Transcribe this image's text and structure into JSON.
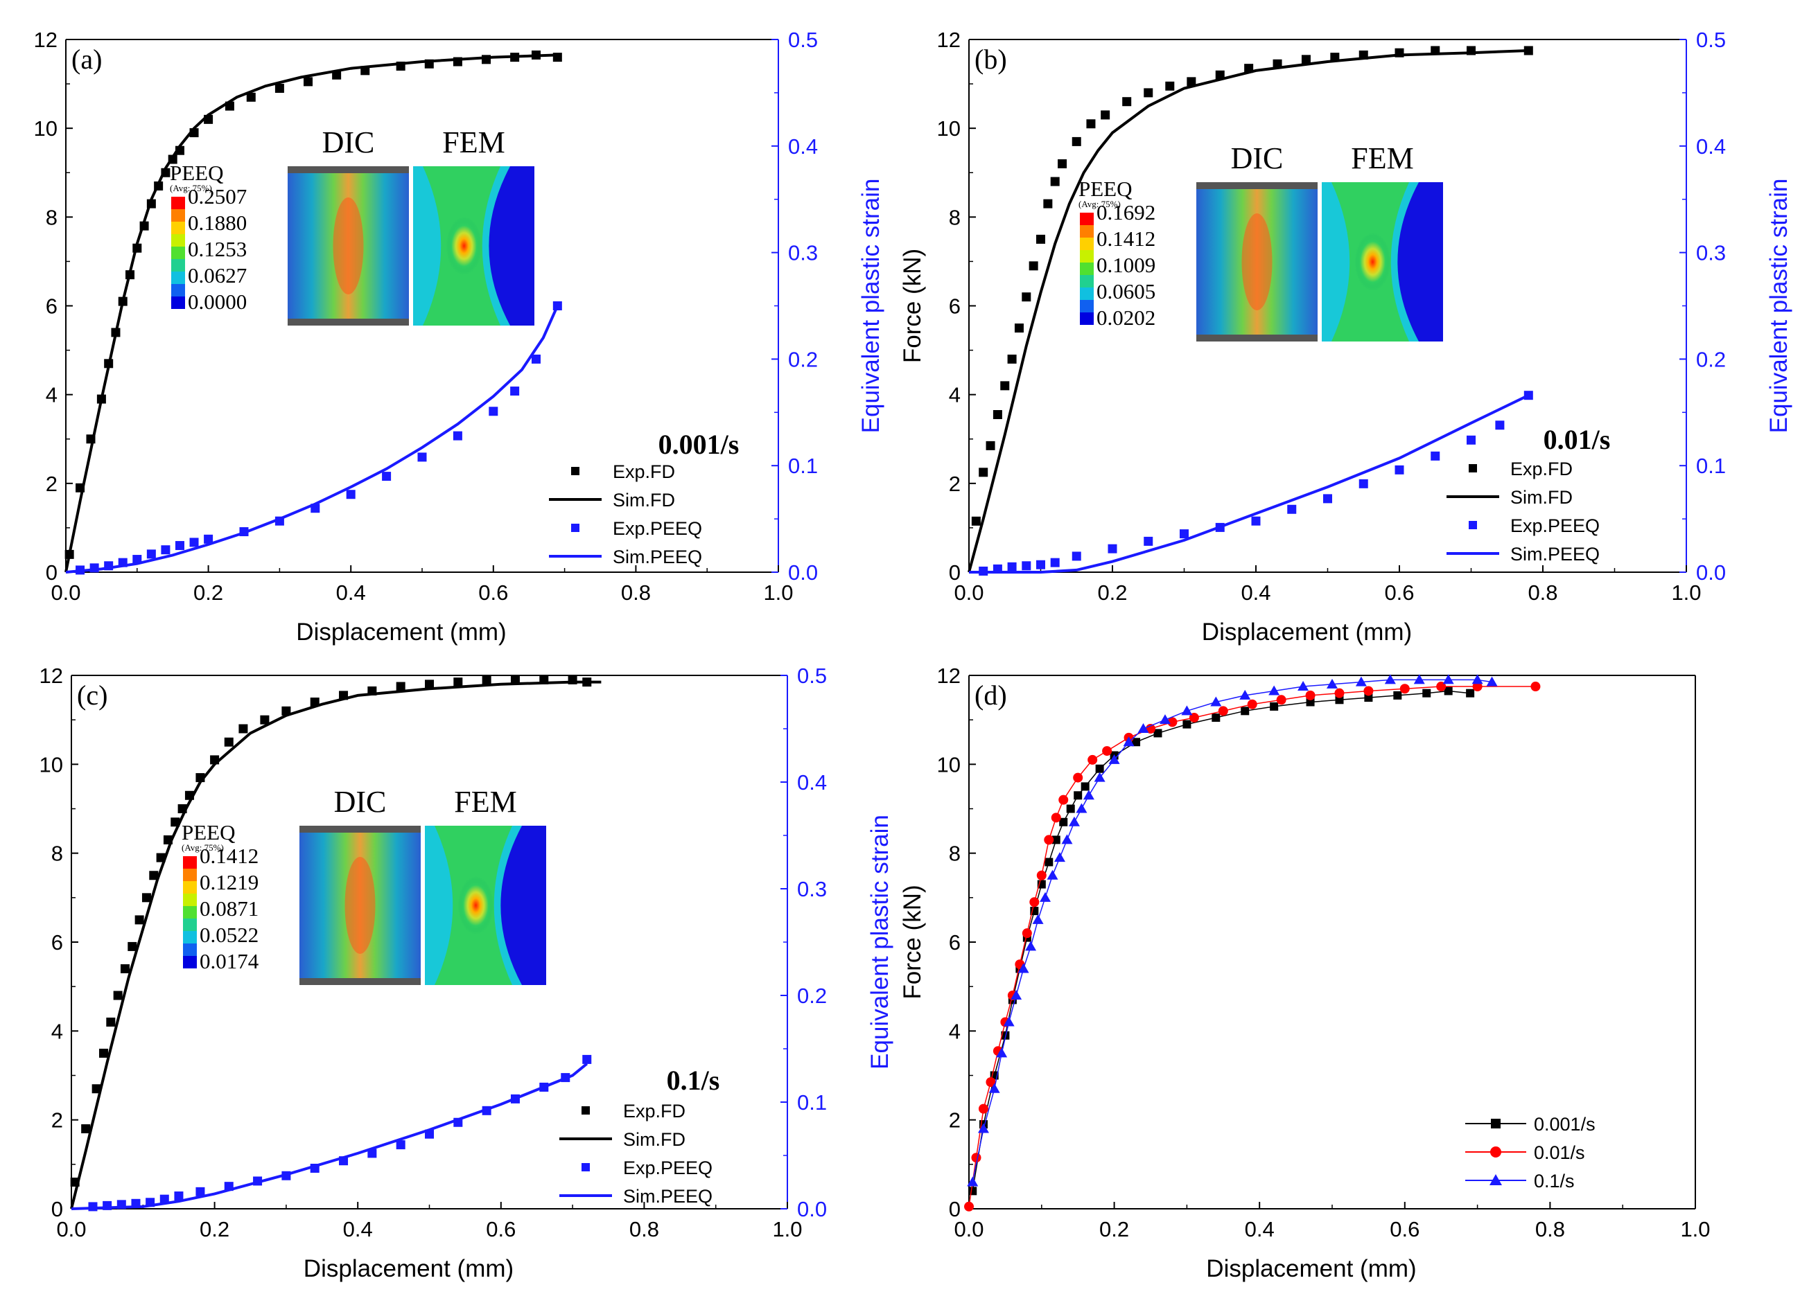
{
  "colors": {
    "exp_fd": "#000000",
    "sim_fd": "#000000",
    "exp_peeq": "#1a1aff",
    "sim_peeq": "#1a1aff",
    "rate_0001": "#000000",
    "rate_001": "#ff0000",
    "rate_01": "#1a1aff"
  },
  "chart_data": [
    {
      "panel": "(a)",
      "type": "scatter",
      "rate_label": "0.001/s",
      "xlabel": "Displacement (mm)",
      "ylabel": "",
      "y2label": "Equivalent plastic strain",
      "xlim": [
        0.0,
        1.0
      ],
      "ylim": [
        0,
        12
      ],
      "y2lim": [
        0.0,
        0.5
      ],
      "xticks": [
        "0.0",
        "0.2",
        "0.4",
        "0.6",
        "0.8",
        "1.0"
      ],
      "yticks": [
        "0",
        "2",
        "4",
        "6",
        "8",
        "10",
        "12"
      ],
      "y2ticks": [
        "0.0",
        "0.1",
        "0.2",
        "0.3",
        "0.4",
        "0.5"
      ],
      "legend": [
        "Exp.FD",
        "Sim.FD",
        "Exp.PEEQ",
        "Sim.PEEQ"
      ],
      "series": [
        {
          "name": "Exp.FD",
          "axis": "y",
          "style": "marker",
          "marker": "square",
          "x": [
            0.005,
            0.02,
            0.035,
            0.05,
            0.06,
            0.07,
            0.08,
            0.09,
            0.1,
            0.11,
            0.12,
            0.13,
            0.14,
            0.15,
            0.16,
            0.18,
            0.2,
            0.23,
            0.26,
            0.3,
            0.34,
            0.38,
            0.42,
            0.47,
            0.51,
            0.55,
            0.59,
            0.63,
            0.66,
            0.69
          ],
          "y": [
            0.4,
            1.9,
            3.0,
            3.9,
            4.7,
            5.4,
            6.1,
            6.7,
            7.3,
            7.8,
            8.3,
            8.7,
            9.0,
            9.3,
            9.5,
            9.9,
            10.2,
            10.5,
            10.7,
            10.9,
            11.05,
            11.2,
            11.3,
            11.4,
            11.45,
            11.5,
            11.55,
            11.6,
            11.65,
            11.6
          ]
        },
        {
          "name": "Sim.FD",
          "axis": "y",
          "style": "line",
          "x": [
            0,
            0.02,
            0.05,
            0.08,
            0.1,
            0.12,
            0.14,
            0.16,
            0.18,
            0.2,
            0.24,
            0.28,
            0.33,
            0.4,
            0.5,
            0.6,
            0.69
          ],
          "y": [
            0,
            1.6,
            3.9,
            6.1,
            7.4,
            8.4,
            9.1,
            9.6,
            10.0,
            10.3,
            10.7,
            10.95,
            11.15,
            11.35,
            11.5,
            11.6,
            11.65
          ]
        },
        {
          "name": "Exp.PEEQ",
          "axis": "y2",
          "style": "marker",
          "marker": "square",
          "x": [
            0.02,
            0.04,
            0.06,
            0.08,
            0.1,
            0.12,
            0.14,
            0.16,
            0.18,
            0.2,
            0.25,
            0.3,
            0.35,
            0.4,
            0.45,
            0.5,
            0.55,
            0.6,
            0.63,
            0.66,
            0.69
          ],
          "y": [
            0.002,
            0.004,
            0.006,
            0.009,
            0.012,
            0.017,
            0.021,
            0.025,
            0.028,
            0.031,
            0.038,
            0.048,
            0.06,
            0.073,
            0.09,
            0.108,
            0.128,
            0.151,
            0.17,
            0.2,
            0.25
          ]
        },
        {
          "name": "Sim.PEEQ",
          "axis": "y2",
          "style": "line",
          "x": [
            0,
            0.05,
            0.1,
            0.15,
            0.2,
            0.25,
            0.3,
            0.35,
            0.4,
            0.45,
            0.5,
            0.55,
            0.6,
            0.64,
            0.67,
            0.69
          ],
          "y": [
            0,
            0.003,
            0.008,
            0.016,
            0.026,
            0.037,
            0.05,
            0.064,
            0.08,
            0.097,
            0.117,
            0.139,
            0.165,
            0.19,
            0.22,
            0.25
          ]
        }
      ],
      "inset": {
        "left_title": "DIC",
        "right_title": "FEM",
        "scale_title": "PEEQ",
        "scale_sub": "(Avg: 75%)",
        "scale_values": [
          "0.2507",
          "0.1880",
          "0.1253",
          "0.0627",
          "0.0000"
        ]
      }
    },
    {
      "panel": "(b)",
      "type": "scatter",
      "rate_label": "0.01/s",
      "xlabel": "Displacement (mm)",
      "ylabel": "Force (kN)",
      "y2label": "Equivalent plastic strain",
      "xlim": [
        0.0,
        1.0
      ],
      "ylim": [
        0,
        12
      ],
      "y2lim": [
        0.0,
        0.5
      ],
      "xticks": [
        "0.0",
        "0.2",
        "0.4",
        "0.6",
        "0.8",
        "1.0"
      ],
      "yticks": [
        "0",
        "2",
        "4",
        "6",
        "8",
        "10",
        "12"
      ],
      "y2ticks": [
        "0.0",
        "0.1",
        "0.2",
        "0.3",
        "0.4",
        "0.5"
      ],
      "legend": [
        "Exp.FD",
        "Sim.FD",
        "Exp.PEEQ",
        "Sim.PEEQ"
      ],
      "series": [
        {
          "name": "Exp.FD",
          "axis": "y",
          "style": "marker",
          "marker": "square",
          "x": [
            0.01,
            0.02,
            0.03,
            0.04,
            0.05,
            0.06,
            0.07,
            0.08,
            0.09,
            0.1,
            0.11,
            0.12,
            0.13,
            0.15,
            0.17,
            0.19,
            0.22,
            0.25,
            0.28,
            0.31,
            0.35,
            0.39,
            0.43,
            0.47,
            0.51,
            0.55,
            0.6,
            0.65,
            0.7,
            0.78
          ],
          "y": [
            1.15,
            2.25,
            2.85,
            3.55,
            4.2,
            4.8,
            5.5,
            6.2,
            6.9,
            7.5,
            8.3,
            8.8,
            9.2,
            9.7,
            10.1,
            10.3,
            10.6,
            10.8,
            10.95,
            11.05,
            11.2,
            11.35,
            11.45,
            11.55,
            11.6,
            11.65,
            11.7,
            11.75,
            11.75,
            11.75
          ]
        },
        {
          "name": "Sim.FD",
          "axis": "y",
          "style": "line",
          "x": [
            0,
            0.02,
            0.05,
            0.08,
            0.1,
            0.12,
            0.14,
            0.16,
            0.18,
            0.2,
            0.25,
            0.3,
            0.35,
            0.4,
            0.5,
            0.6,
            0.7,
            0.78
          ],
          "y": [
            0,
            1.2,
            3.1,
            5.1,
            6.3,
            7.4,
            8.3,
            9.0,
            9.5,
            9.9,
            10.5,
            10.9,
            11.1,
            11.3,
            11.5,
            11.65,
            11.7,
            11.75
          ]
        },
        {
          "name": "Exp.PEEQ",
          "axis": "y2",
          "style": "marker",
          "marker": "square",
          "x": [
            0.02,
            0.04,
            0.06,
            0.08,
            0.1,
            0.12,
            0.15,
            0.2,
            0.25,
            0.3,
            0.35,
            0.4,
            0.45,
            0.5,
            0.55,
            0.6,
            0.65,
            0.7,
            0.74,
            0.78
          ],
          "y": [
            0.001,
            0.003,
            0.005,
            0.006,
            0.007,
            0.009,
            0.015,
            0.022,
            0.029,
            0.036,
            0.042,
            0.048,
            0.059,
            0.069,
            0.083,
            0.096,
            0.109,
            0.124,
            0.138,
            0.166
          ]
        },
        {
          "name": "Sim.PEEQ",
          "axis": "y2",
          "style": "line",
          "x": [
            0,
            0.1,
            0.15,
            0.2,
            0.3,
            0.4,
            0.5,
            0.6,
            0.7,
            0.78
          ],
          "y": [
            0,
            0.0,
            0.002,
            0.01,
            0.03,
            0.055,
            0.08,
            0.107,
            0.14,
            0.166
          ]
        }
      ],
      "inset": {
        "left_title": "DIC",
        "right_title": "FEM",
        "scale_title": "PEEQ",
        "scale_sub": "(Avg: 75%)",
        "scale_values": [
          "0.1692",
          "0.1412",
          "0.1009",
          "0.0605",
          "0.0202"
        ]
      }
    },
    {
      "panel": "(c)",
      "type": "scatter",
      "rate_label": "0.1/s",
      "xlabel": "Displacement (mm)",
      "ylabel": "",
      "y2label": "Equivalent plastic strain",
      "xlim": [
        0.0,
        1.0
      ],
      "ylim": [
        0,
        12
      ],
      "y2lim": [
        0.0,
        0.5
      ],
      "xticks": [
        "0.0",
        "0.2",
        "0.4",
        "0.6",
        "0.8",
        "1.0"
      ],
      "yticks": [
        "0",
        "2",
        "4",
        "6",
        "8",
        "10",
        "12"
      ],
      "y2ticks": [
        "0.0",
        "0.1",
        "0.2",
        "0.3",
        "0.4",
        "0.5"
      ],
      "legend": [
        "Exp.FD",
        "Sim.FD",
        "Exp.PEEQ",
        "Sim.PEEQ"
      ],
      "series": [
        {
          "name": "Exp.FD",
          "axis": "y",
          "style": "marker",
          "marker": "square",
          "x": [
            0.005,
            0.02,
            0.035,
            0.045,
            0.055,
            0.065,
            0.075,
            0.085,
            0.095,
            0.105,
            0.115,
            0.125,
            0.135,
            0.145,
            0.155,
            0.165,
            0.18,
            0.2,
            0.22,
            0.24,
            0.27,
            0.3,
            0.34,
            0.38,
            0.42,
            0.46,
            0.5,
            0.54,
            0.58,
            0.62,
            0.66,
            0.7,
            0.72
          ],
          "y": [
            0.6,
            1.8,
            2.7,
            3.5,
            4.2,
            4.8,
            5.4,
            5.9,
            6.5,
            7.0,
            7.5,
            7.9,
            8.3,
            8.7,
            9.0,
            9.3,
            9.7,
            10.1,
            10.5,
            10.8,
            11.0,
            11.2,
            11.4,
            11.55,
            11.65,
            11.75,
            11.8,
            11.85,
            11.9,
            11.9,
            11.9,
            11.9,
            11.85
          ]
        },
        {
          "name": "Sim.FD",
          "axis": "y",
          "style": "line",
          "x": [
            0,
            0.02,
            0.05,
            0.08,
            0.1,
            0.12,
            0.14,
            0.16,
            0.18,
            0.2,
            0.25,
            0.3,
            0.35,
            0.4,
            0.5,
            0.6,
            0.7,
            0.74
          ],
          "y": [
            0,
            1.3,
            3.3,
            5.2,
            6.3,
            7.4,
            8.3,
            9.0,
            9.6,
            10.0,
            10.7,
            11.1,
            11.35,
            11.55,
            11.7,
            11.8,
            11.85,
            11.85
          ]
        },
        {
          "name": "Exp.PEEQ",
          "axis": "y2",
          "style": "marker",
          "marker": "square",
          "x": [
            0.03,
            0.05,
            0.07,
            0.09,
            0.11,
            0.13,
            0.15,
            0.18,
            0.22,
            0.26,
            0.3,
            0.34,
            0.38,
            0.42,
            0.46,
            0.5,
            0.54,
            0.58,
            0.62,
            0.66,
            0.69,
            0.72
          ],
          "y": [
            0.002,
            0.003,
            0.004,
            0.005,
            0.006,
            0.009,
            0.012,
            0.016,
            0.021,
            0.026,
            0.031,
            0.038,
            0.045,
            0.052,
            0.06,
            0.07,
            0.081,
            0.092,
            0.103,
            0.114,
            0.123,
            0.14
          ]
        },
        {
          "name": "Sim.PEEQ",
          "axis": "y2",
          "style": "line",
          "x": [
            0,
            0.1,
            0.15,
            0.2,
            0.3,
            0.4,
            0.5,
            0.6,
            0.7,
            0.72
          ],
          "y": [
            0,
            0.002,
            0.007,
            0.014,
            0.032,
            0.052,
            0.074,
            0.098,
            0.125,
            0.136
          ]
        }
      ],
      "inset": {
        "left_title": "DIC",
        "right_title": "FEM",
        "scale_title": "PEEQ",
        "scale_sub": "(Avg: 75%)",
        "scale_values": [
          "0.1412",
          "0.1219",
          "0.0871",
          "0.0522",
          "0.0174"
        ]
      }
    },
    {
      "panel": "(d)",
      "type": "line",
      "rate_label": "",
      "xlabel": "Displacement (mm)",
      "ylabel": "Force (kN)",
      "xlim": [
        0.0,
        1.0
      ],
      "ylim": [
        0,
        12
      ],
      "xticks": [
        "0.0",
        "0.2",
        "0.4",
        "0.6",
        "0.8",
        "1.0"
      ],
      "yticks": [
        "0",
        "2",
        "4",
        "6",
        "8",
        "10",
        "12"
      ],
      "legend": [
        "0.001/s",
        "0.01/s",
        "0.1/s"
      ],
      "series": [
        {
          "name": "0.001/s",
          "style": "linemarker",
          "marker": "square",
          "x": [
            0.005,
            0.02,
            0.035,
            0.05,
            0.06,
            0.07,
            0.08,
            0.09,
            0.1,
            0.11,
            0.12,
            0.13,
            0.14,
            0.15,
            0.16,
            0.18,
            0.2,
            0.23,
            0.26,
            0.3,
            0.34,
            0.38,
            0.42,
            0.47,
            0.51,
            0.55,
            0.59,
            0.63,
            0.66,
            0.69
          ],
          "y": [
            0.4,
            1.9,
            3.0,
            3.9,
            4.7,
            5.4,
            6.1,
            6.7,
            7.3,
            7.8,
            8.3,
            8.7,
            9.0,
            9.3,
            9.5,
            9.9,
            10.2,
            10.5,
            10.7,
            10.9,
            11.05,
            11.2,
            11.3,
            11.4,
            11.45,
            11.5,
            11.55,
            11.6,
            11.65,
            11.6
          ]
        },
        {
          "name": "0.01/s",
          "style": "linemarker",
          "marker": "circle",
          "x": [
            0.0,
            0.01,
            0.02,
            0.03,
            0.04,
            0.05,
            0.06,
            0.07,
            0.08,
            0.09,
            0.1,
            0.11,
            0.12,
            0.13,
            0.15,
            0.17,
            0.19,
            0.22,
            0.25,
            0.28,
            0.31,
            0.35,
            0.39,
            0.43,
            0.47,
            0.51,
            0.55,
            0.6,
            0.65,
            0.7,
            0.78
          ],
          "y": [
            0.05,
            1.15,
            2.25,
            2.85,
            3.55,
            4.2,
            4.8,
            5.5,
            6.2,
            6.9,
            7.5,
            8.3,
            8.8,
            9.2,
            9.7,
            10.1,
            10.3,
            10.6,
            10.8,
            10.95,
            11.05,
            11.2,
            11.35,
            11.45,
            11.55,
            11.6,
            11.65,
            11.7,
            11.75,
            11.75,
            11.75
          ]
        },
        {
          "name": "0.1/s",
          "style": "linemarker",
          "marker": "triangle",
          "x": [
            0.005,
            0.02,
            0.035,
            0.045,
            0.055,
            0.065,
            0.075,
            0.085,
            0.095,
            0.105,
            0.115,
            0.125,
            0.135,
            0.145,
            0.155,
            0.165,
            0.18,
            0.2,
            0.22,
            0.24,
            0.27,
            0.3,
            0.34,
            0.38,
            0.42,
            0.46,
            0.5,
            0.54,
            0.58,
            0.62,
            0.66,
            0.7,
            0.72
          ],
          "y": [
            0.6,
            1.8,
            2.7,
            3.5,
            4.2,
            4.8,
            5.4,
            5.9,
            6.5,
            7.0,
            7.5,
            7.9,
            8.3,
            8.7,
            9.0,
            9.3,
            9.7,
            10.1,
            10.5,
            10.8,
            11.0,
            11.2,
            11.4,
            11.55,
            11.65,
            11.75,
            11.8,
            11.85,
            11.9,
            11.9,
            11.9,
            11.9,
            11.85
          ]
        }
      ]
    }
  ]
}
